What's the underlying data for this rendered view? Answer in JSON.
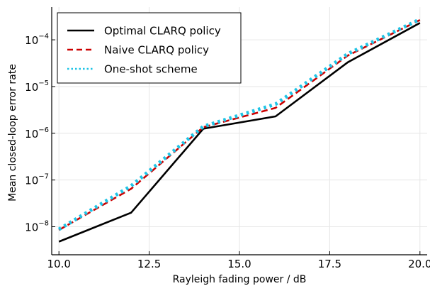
{
  "chart_data": {
    "type": "line",
    "xlabel": "Rayleigh fading power / dB",
    "ylabel": "Mean closed-loop error rate",
    "y_scale": "log",
    "xlim": [
      9.8,
      20.2
    ],
    "ylim_log10": [
      -8.6,
      -3.3
    ],
    "x_ticks": [
      10.0,
      12.5,
      15.0,
      17.5,
      20.0
    ],
    "x_tick_labels": [
      "10.0",
      "12.5",
      "15.0",
      "17.5",
      "20.0"
    ],
    "y_tick_exponents": [
      -8,
      -7,
      -6,
      -5,
      -4
    ],
    "y_tick_base": "10",
    "grid": true,
    "legend_position": "top-left",
    "x": [
      10,
      12,
      14,
      16,
      18,
      20
    ],
    "series": [
      {
        "name": "Optimal CLARQ policy",
        "color": "#000000",
        "dash": "solid",
        "values": [
          4.8e-09,
          2e-08,
          1.25e-06,
          2.3e-06,
          3.3e-05,
          0.00023
        ]
      },
      {
        "name": "Naive CLARQ policy",
        "color": "#cc0000",
        "dash": "dashed",
        "values": [
          8.5e-09,
          6.5e-08,
          1.35e-06,
          3.5e-06,
          4.6e-05,
          0.000265
        ]
      },
      {
        "name": "One-shot scheme",
        "color": "#1ec4e6",
        "dash": "dotted",
        "values": [
          8.8e-09,
          7.5e-08,
          1.4e-06,
          4.2e-06,
          5e-05,
          0.000275
        ]
      }
    ]
  }
}
